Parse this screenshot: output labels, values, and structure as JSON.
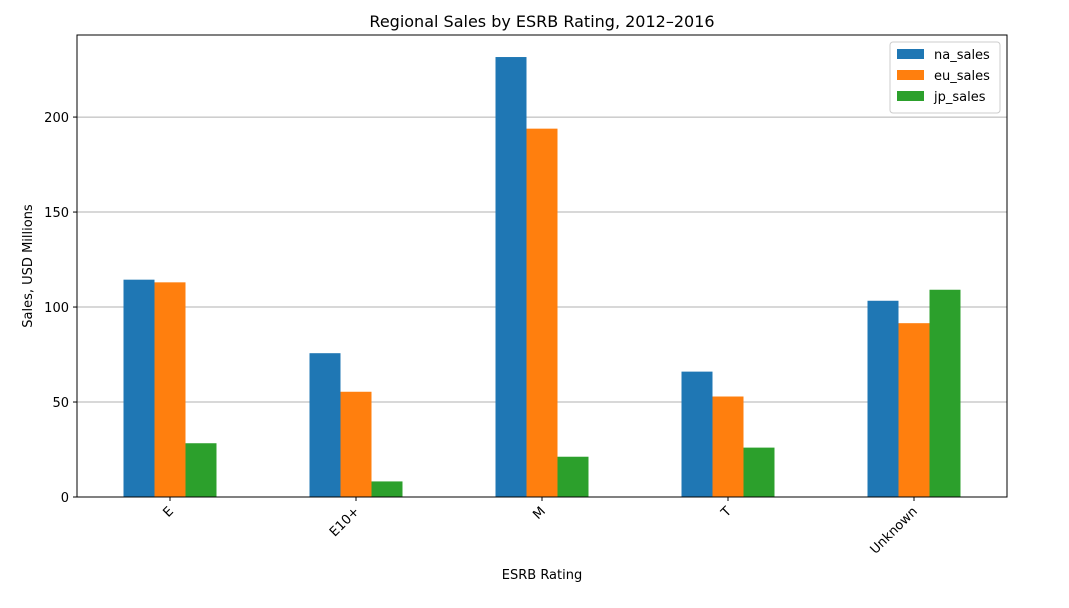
{
  "chart_data": {
    "type": "bar",
    "title": "Regional Sales by ESRB Rating, 2012–2016",
    "xlabel": "ESRB Rating",
    "ylabel": "Sales, USD Millions",
    "categories": [
      "E",
      "E10+",
      "M",
      "T",
      "Unknown"
    ],
    "series": [
      {
        "name": "na_sales",
        "color": "#1f77b4",
        "values": [
          114.4,
          75.7,
          231.6,
          66.0,
          103.3
        ]
      },
      {
        "name": "eu_sales",
        "color": "#ff7f0e",
        "values": [
          113.0,
          55.4,
          193.9,
          52.9,
          91.5
        ]
      },
      {
        "name": "jp_sales",
        "color": "#2ca02c",
        "values": [
          28.3,
          8.2,
          21.2,
          26.0,
          109.1
        ]
      }
    ],
    "ylim": [
      0,
      243.2
    ],
    "yticks": [
      0,
      50,
      100,
      150,
      200
    ],
    "grid": "y",
    "legend_position": "top-right"
  }
}
